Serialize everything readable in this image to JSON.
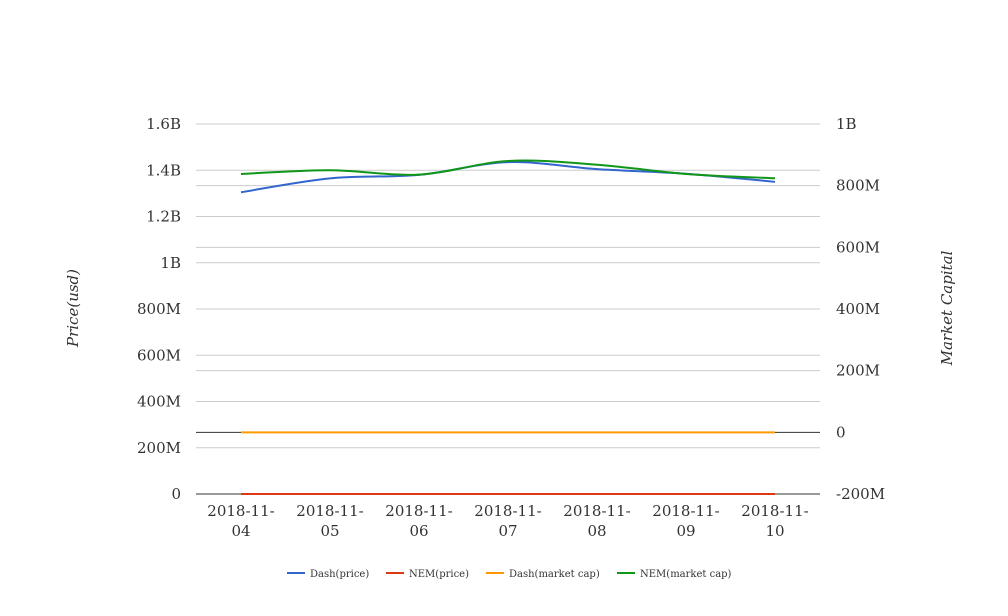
{
  "chart_data": {
    "type": "line",
    "categories": [
      "2018-11-04",
      "2018-11-05",
      "2018-11-06",
      "2018-11-07",
      "2018-11-08",
      "2018-11-09",
      "2018-11-10"
    ],
    "category_labels": [
      [
        "2018-11-",
        "04"
      ],
      [
        "2018-11-",
        "05"
      ],
      [
        "2018-11-",
        "06"
      ],
      [
        "2018-11-",
        "07"
      ],
      [
        "2018-11-",
        "08"
      ],
      [
        "2018-11-",
        "09"
      ],
      [
        "2018-11-",
        "10"
      ]
    ],
    "y_left": {
      "label": "Price(usd)",
      "ylim": [
        0,
        1600000000
      ],
      "ticks": [
        0,
        200000000,
        400000000,
        600000000,
        800000000,
        1000000000,
        1200000000,
        1400000000,
        1600000000
      ],
      "tick_labels": [
        "0",
        "200M",
        "400M",
        "600M",
        "800M",
        "1B",
        "1.2B",
        "1.4B",
        "1.6B"
      ]
    },
    "y_right": {
      "label": "Market Capital",
      "ylim": [
        -200000000,
        1000000000
      ],
      "ticks": [
        -200000000,
        0,
        200000000,
        400000000,
        600000000,
        800000000,
        1000000000
      ],
      "tick_labels": [
        "-200M",
        "0",
        "200M",
        "400M",
        "600M",
        "800M",
        "1B"
      ]
    },
    "series": [
      {
        "name": "Dash(price)",
        "axis": "left",
        "color": "#3366cc",
        "values": [
          1305000000,
          1365000000,
          1380000000,
          1435000000,
          1405000000,
          1385000000,
          1350000000
        ]
      },
      {
        "name": "NEM(price)",
        "axis": "left",
        "color": "#dc3912",
        "values": [
          0.2,
          0.2,
          0.2,
          0.2,
          0.2,
          0.2,
          0.2
        ]
      },
      {
        "name": "Dash(market cap)",
        "axis": "right",
        "color": "#ff9900",
        "values": [
          0,
          0,
          0,
          0,
          0,
          0,
          0
        ]
      },
      {
        "name": "NEM(market cap)",
        "axis": "right",
        "color": "#109618",
        "values": [
          838000000,
          850000000,
          836000000,
          880000000,
          868000000,
          838000000,
          824000000
        ]
      }
    ],
    "grid": true,
    "legend_position": "bottom"
  }
}
